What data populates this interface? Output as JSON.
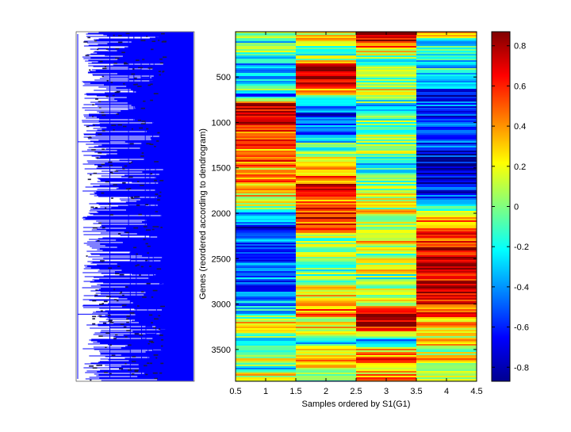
{
  "chart_data": {
    "type": "heatmap",
    "title": "",
    "xlabel": "Samples ordered by S1(G1)",
    "ylabel": "Genes (reordered according to dendrogram)",
    "xlim": [
      0.5,
      4.5
    ],
    "ylim": [
      1,
      3850
    ],
    "x_ticks": [
      "0.5",
      "1",
      "1.5",
      "2",
      "2.5",
      "3",
      "3.5",
      "4",
      "4.5"
    ],
    "y_ticks": [
      "500",
      "1000",
      "1500",
      "2000",
      "2500",
      "3000",
      "3500"
    ],
    "columns": [
      1,
      2,
      3,
      4
    ],
    "colorbar": {
      "colormap": "jet",
      "range": [
        -0.87,
        0.87
      ],
      "ticks": [
        "0.8",
        "0.6",
        "0.4",
        "0.2",
        "0",
        "-0.2",
        "-0.4",
        "-0.6",
        "-0.8"
      ]
    },
    "column_profiles": [
      [
        [
          0,
          0.05
        ],
        [
          100,
          -0.25
        ],
        [
          200,
          0.1
        ],
        [
          300,
          -0.3
        ],
        [
          400,
          -0.35
        ],
        [
          500,
          -0.45
        ],
        [
          600,
          0.05
        ],
        [
          700,
          -0.6
        ],
        [
          800,
          0.85
        ],
        [
          900,
          0.7
        ],
        [
          1000,
          0.8
        ],
        [
          1100,
          0.6
        ],
        [
          1200,
          0.55
        ],
        [
          1300,
          0.45
        ],
        [
          1400,
          0.5
        ],
        [
          1500,
          0.35
        ],
        [
          1600,
          0.4
        ],
        [
          1700,
          0.3
        ],
        [
          1800,
          0.25
        ],
        [
          1900,
          0.1
        ],
        [
          2000,
          -0.3
        ],
        [
          2100,
          -0.55
        ],
        [
          2200,
          -0.65
        ],
        [
          2300,
          -0.45
        ],
        [
          2400,
          -0.6
        ],
        [
          2500,
          -0.5
        ],
        [
          2600,
          -0.55
        ],
        [
          2700,
          -0.4
        ],
        [
          2800,
          -0.5
        ],
        [
          2900,
          -0.45
        ],
        [
          3000,
          -0.35
        ],
        [
          3100,
          -0.3
        ],
        [
          3200,
          0.3
        ],
        [
          3300,
          0.15
        ],
        [
          3400,
          -0.2
        ],
        [
          3500,
          -0.1
        ],
        [
          3600,
          0.1
        ],
        [
          3700,
          -0.2
        ],
        [
          3800,
          0.3
        ]
      ],
      [
        [
          0,
          0.1
        ],
        [
          100,
          0.2
        ],
        [
          200,
          -0.3
        ],
        [
          300,
          0.2
        ],
        [
          400,
          0.85
        ],
        [
          500,
          0.8
        ],
        [
          600,
          0.5
        ],
        [
          700,
          0.1
        ],
        [
          800,
          -0.25
        ],
        [
          900,
          -0.6
        ],
        [
          1000,
          -0.4
        ],
        [
          1100,
          -0.5
        ],
        [
          1200,
          -0.2
        ],
        [
          1300,
          -0.1
        ],
        [
          1400,
          0.1
        ],
        [
          1500,
          0.35
        ],
        [
          1600,
          0.5
        ],
        [
          1700,
          0.6
        ],
        [
          1800,
          0.4
        ],
        [
          1900,
          0.45
        ],
        [
          2000,
          0.7
        ],
        [
          2100,
          0.55
        ],
        [
          2200,
          0.3
        ],
        [
          2300,
          0.0
        ],
        [
          2400,
          0.1
        ],
        [
          2500,
          0.2
        ],
        [
          2600,
          -0.1
        ],
        [
          2700,
          0.05
        ],
        [
          2800,
          0.2
        ],
        [
          2900,
          0.3
        ],
        [
          3000,
          0.5
        ],
        [
          3100,
          0.4
        ],
        [
          3200,
          0.1
        ],
        [
          3300,
          0.3
        ],
        [
          3400,
          -0.3
        ],
        [
          3500,
          0.2
        ],
        [
          3600,
          0.4
        ],
        [
          3700,
          0.1
        ],
        [
          3800,
          -0.2
        ]
      ],
      [
        [
          0,
          0.85
        ],
        [
          100,
          0.7
        ],
        [
          200,
          0.3
        ],
        [
          300,
          -0.2
        ],
        [
          400,
          0.1
        ],
        [
          500,
          -0.1
        ],
        [
          600,
          0.2
        ],
        [
          700,
          0.05
        ],
        [
          800,
          -0.2
        ],
        [
          900,
          -0.1
        ],
        [
          1000,
          0.05
        ],
        [
          1100,
          0.0
        ],
        [
          1200,
          -0.05
        ],
        [
          1300,
          0.1
        ],
        [
          1400,
          -0.15
        ],
        [
          1500,
          -0.2
        ],
        [
          1600,
          -0.1
        ],
        [
          1700,
          0.05
        ],
        [
          1800,
          0.15
        ],
        [
          1900,
          0.1
        ],
        [
          2000,
          0.2
        ],
        [
          2100,
          0.05
        ],
        [
          2200,
          0.15
        ],
        [
          2300,
          0.25
        ],
        [
          2400,
          0.1
        ],
        [
          2500,
          0.05
        ],
        [
          2600,
          0.2
        ],
        [
          2700,
          -0.1
        ],
        [
          2800,
          0.0
        ],
        [
          2900,
          0.1
        ],
        [
          3000,
          0.05
        ],
        [
          3100,
          0.85
        ],
        [
          3200,
          0.8
        ],
        [
          3300,
          0.4
        ],
        [
          3400,
          -0.4
        ],
        [
          3500,
          0.3
        ],
        [
          3600,
          0.5
        ],
        [
          3700,
          0.2
        ],
        [
          3800,
          0.4
        ]
      ],
      [
        [
          0,
          0.3
        ],
        [
          100,
          -0.2
        ],
        [
          200,
          -0.1
        ],
        [
          300,
          -0.3
        ],
        [
          400,
          -0.2
        ],
        [
          500,
          -0.5
        ],
        [
          600,
          -0.4
        ],
        [
          700,
          -0.6
        ],
        [
          800,
          -0.5
        ],
        [
          900,
          -0.55
        ],
        [
          1000,
          -0.45
        ],
        [
          1100,
          -0.5
        ],
        [
          1200,
          -0.55
        ],
        [
          1300,
          -0.6
        ],
        [
          1400,
          -0.7
        ],
        [
          1500,
          -0.8
        ],
        [
          1600,
          -0.75
        ],
        [
          1700,
          -0.6
        ],
        [
          1800,
          -0.55
        ],
        [
          1900,
          -0.4
        ],
        [
          2000,
          0.4
        ],
        [
          2100,
          0.5
        ],
        [
          2200,
          0.55
        ],
        [
          2300,
          0.6
        ],
        [
          2400,
          0.75
        ],
        [
          2500,
          0.8
        ],
        [
          2600,
          0.75
        ],
        [
          2700,
          0.7
        ],
        [
          2800,
          0.8
        ],
        [
          2900,
          0.7
        ],
        [
          3000,
          0.6
        ],
        [
          3100,
          0.5
        ],
        [
          3200,
          0.3
        ],
        [
          3300,
          0.2
        ],
        [
          3400,
          0.3
        ],
        [
          3500,
          0.1
        ],
        [
          3600,
          0.3
        ],
        [
          3700,
          0.2
        ],
        [
          3800,
          0.1
        ]
      ]
    ],
    "dendrogram": {
      "type": "dendrogram",
      "color": "#0000ff",
      "leaves": 3850
    }
  }
}
